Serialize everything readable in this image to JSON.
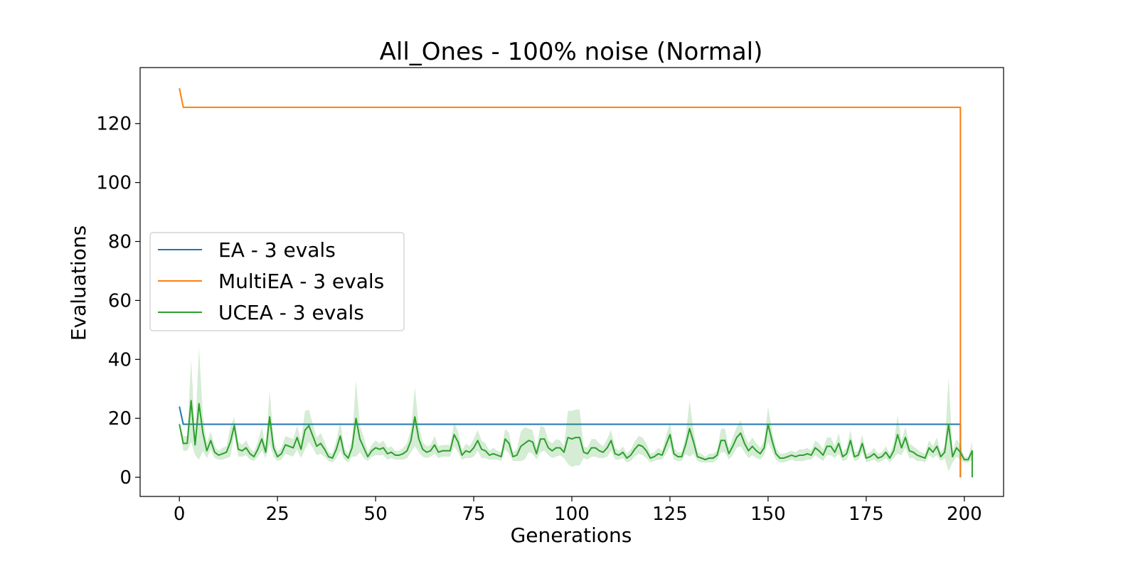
{
  "chart_data": {
    "type": "line",
    "title": "All_Ones - 100% noise (Normal)",
    "xlabel": "Generations",
    "ylabel": "Evaluations",
    "xlim": [
      -10,
      210
    ],
    "ylim": [
      -6.5,
      139
    ],
    "xticks": [
      0,
      25,
      50,
      75,
      100,
      125,
      150,
      175,
      200
    ],
    "yticks": [
      0,
      20,
      40,
      60,
      80,
      100,
      120
    ],
    "grid": false,
    "legend_position": "center-left",
    "series": [
      {
        "name": "EA - 3 evals",
        "color": "#1f77b4",
        "points": [
          [
            0,
            24
          ],
          [
            1,
            18
          ],
          [
            199,
            18
          ],
          [
            199,
            0
          ]
        ]
      },
      {
        "name": "MultiEA - 3 evals",
        "color": "#ff7f0e",
        "points": [
          [
            0,
            132
          ],
          [
            1,
            125.5
          ],
          [
            199,
            125.5
          ],
          [
            199,
            0
          ]
        ]
      },
      {
        "name": "UCEA - 3 evals",
        "color": "#2ca02c",
        "band_color": "#2ca02c",
        "values": [
          18,
          11.5,
          11.5,
          26,
          11,
          25,
          15,
          9,
          12.5,
          8.5,
          7.5,
          8,
          8.5,
          12,
          17.5,
          9.5,
          9,
          10,
          8,
          7,
          9.5,
          13,
          8.5,
          20.5,
          10,
          7,
          8,
          11,
          10.5,
          10,
          13.5,
          9.5,
          16,
          17.5,
          14,
          10.5,
          11.5,
          9.5,
          7,
          6.5,
          9.5,
          14,
          8,
          6.5,
          10,
          20,
          13,
          10,
          7,
          9,
          10,
          9.5,
          10,
          8,
          8.5,
          7.5,
          7.5,
          8,
          9,
          12.5,
          20.5,
          13,
          9.5,
          8.5,
          9,
          11,
          8.5,
          9,
          9,
          9,
          14.5,
          12,
          7.5,
          9,
          8.5,
          10,
          12.5,
          9.5,
          9,
          7.5,
          8,
          7.5,
          7,
          13,
          11.5,
          7,
          7.5,
          10.5,
          11.5,
          12.5,
          12,
          8,
          13,
          13,
          10,
          9,
          10,
          10,
          8.5,
          13.5,
          13,
          13.5,
          13.5,
          8.5,
          8,
          10,
          10,
          9,
          8.5,
          10,
          12.5,
          8,
          7.5,
          8.5,
          6.5,
          7.5,
          9.5,
          11,
          10.5,
          9,
          6.5,
          7,
          8,
          7.5,
          11,
          14.5,
          8,
          7,
          7,
          11,
          16.5,
          12,
          7,
          6.5,
          6,
          6.5,
          6.5,
          7.5,
          12.5,
          12.5,
          8,
          10.5,
          13.5,
          15,
          11.5,
          9,
          10.5,
          9,
          8,
          10,
          18,
          12.5,
          8,
          6.5,
          6.5,
          7,
          7.5,
          7,
          7.5,
          7.5,
          8,
          7.5,
          10,
          9,
          7.5,
          10.5,
          10.5,
          8.5,
          11.5,
          7,
          8,
          12.5,
          7,
          7.5,
          11.5,
          6.5,
          7,
          8,
          6.5,
          7,
          8.5,
          6.5,
          9,
          14.5,
          10,
          13.5,
          9,
          8.5,
          7.5,
          7,
          6.5,
          10,
          8.5,
          10.5,
          7,
          8.5,
          18,
          7,
          10,
          8.5,
          6,
          6,
          9
        ],
        "band_halfwidth": [
          1,
          2.5,
          2.5,
          14,
          3.5,
          19,
          6,
          2.5,
          3,
          2,
          1.5,
          2,
          2,
          5,
          3,
          2.5,
          2,
          2.5,
          2,
          1.5,
          2.5,
          4,
          2,
          9,
          3,
          1.5,
          2,
          3,
          3,
          3,
          4,
          3,
          6.5,
          5.5,
          4,
          3,
          3.5,
          2.5,
          1.5,
          1.5,
          3,
          5,
          2,
          1.5,
          3,
          13,
          4.5,
          3.5,
          1.5,
          2,
          2.5,
          2,
          2.5,
          2,
          2,
          1.5,
          1.5,
          2,
          2.5,
          4,
          10,
          4.5,
          2.5,
          2,
          2,
          3,
          2,
          2,
          2,
          2,
          4,
          3.5,
          1.5,
          2.5,
          2,
          3,
          3.5,
          3,
          2.5,
          1.5,
          2,
          1.5,
          1.5,
          3.5,
          3.5,
          1.5,
          2,
          5,
          5.5,
          4,
          4,
          2,
          4.5,
          4,
          2.5,
          2.5,
          3,
          2.5,
          2,
          9,
          9.5,
          9.5,
          9.5,
          2,
          2,
          3,
          3,
          2.5,
          2,
          3,
          3.5,
          2,
          1.5,
          2,
          1.5,
          2,
          2.5,
          3,
          3,
          2.5,
          1.5,
          1.5,
          2,
          1.5,
          3,
          4,
          2,
          1.5,
          1.5,
          3,
          9.5,
          4,
          1.5,
          1.5,
          1,
          1.5,
          1.5,
          1.5,
          4,
          4,
          2,
          3,
          3.5,
          4.5,
          3,
          2.5,
          3,
          2.5,
          2,
          2.5,
          6,
          3.5,
          2,
          1.5,
          1.5,
          1.5,
          1.5,
          1.5,
          2,
          2,
          2,
          1.5,
          2.5,
          2.5,
          2,
          3,
          3,
          2,
          3.5,
          1.5,
          2,
          3.5,
          1.5,
          1.5,
          3,
          1.5,
          1.5,
          2,
          1.5,
          1.5,
          2,
          1.5,
          2.5,
          6.5,
          2.5,
          3.5,
          2.5,
          2,
          2,
          1.5,
          1.5,
          2.5,
          2,
          3,
          1.5,
          2,
          16,
          2,
          3,
          2.5,
          1,
          1,
          3
        ]
      }
    ]
  }
}
